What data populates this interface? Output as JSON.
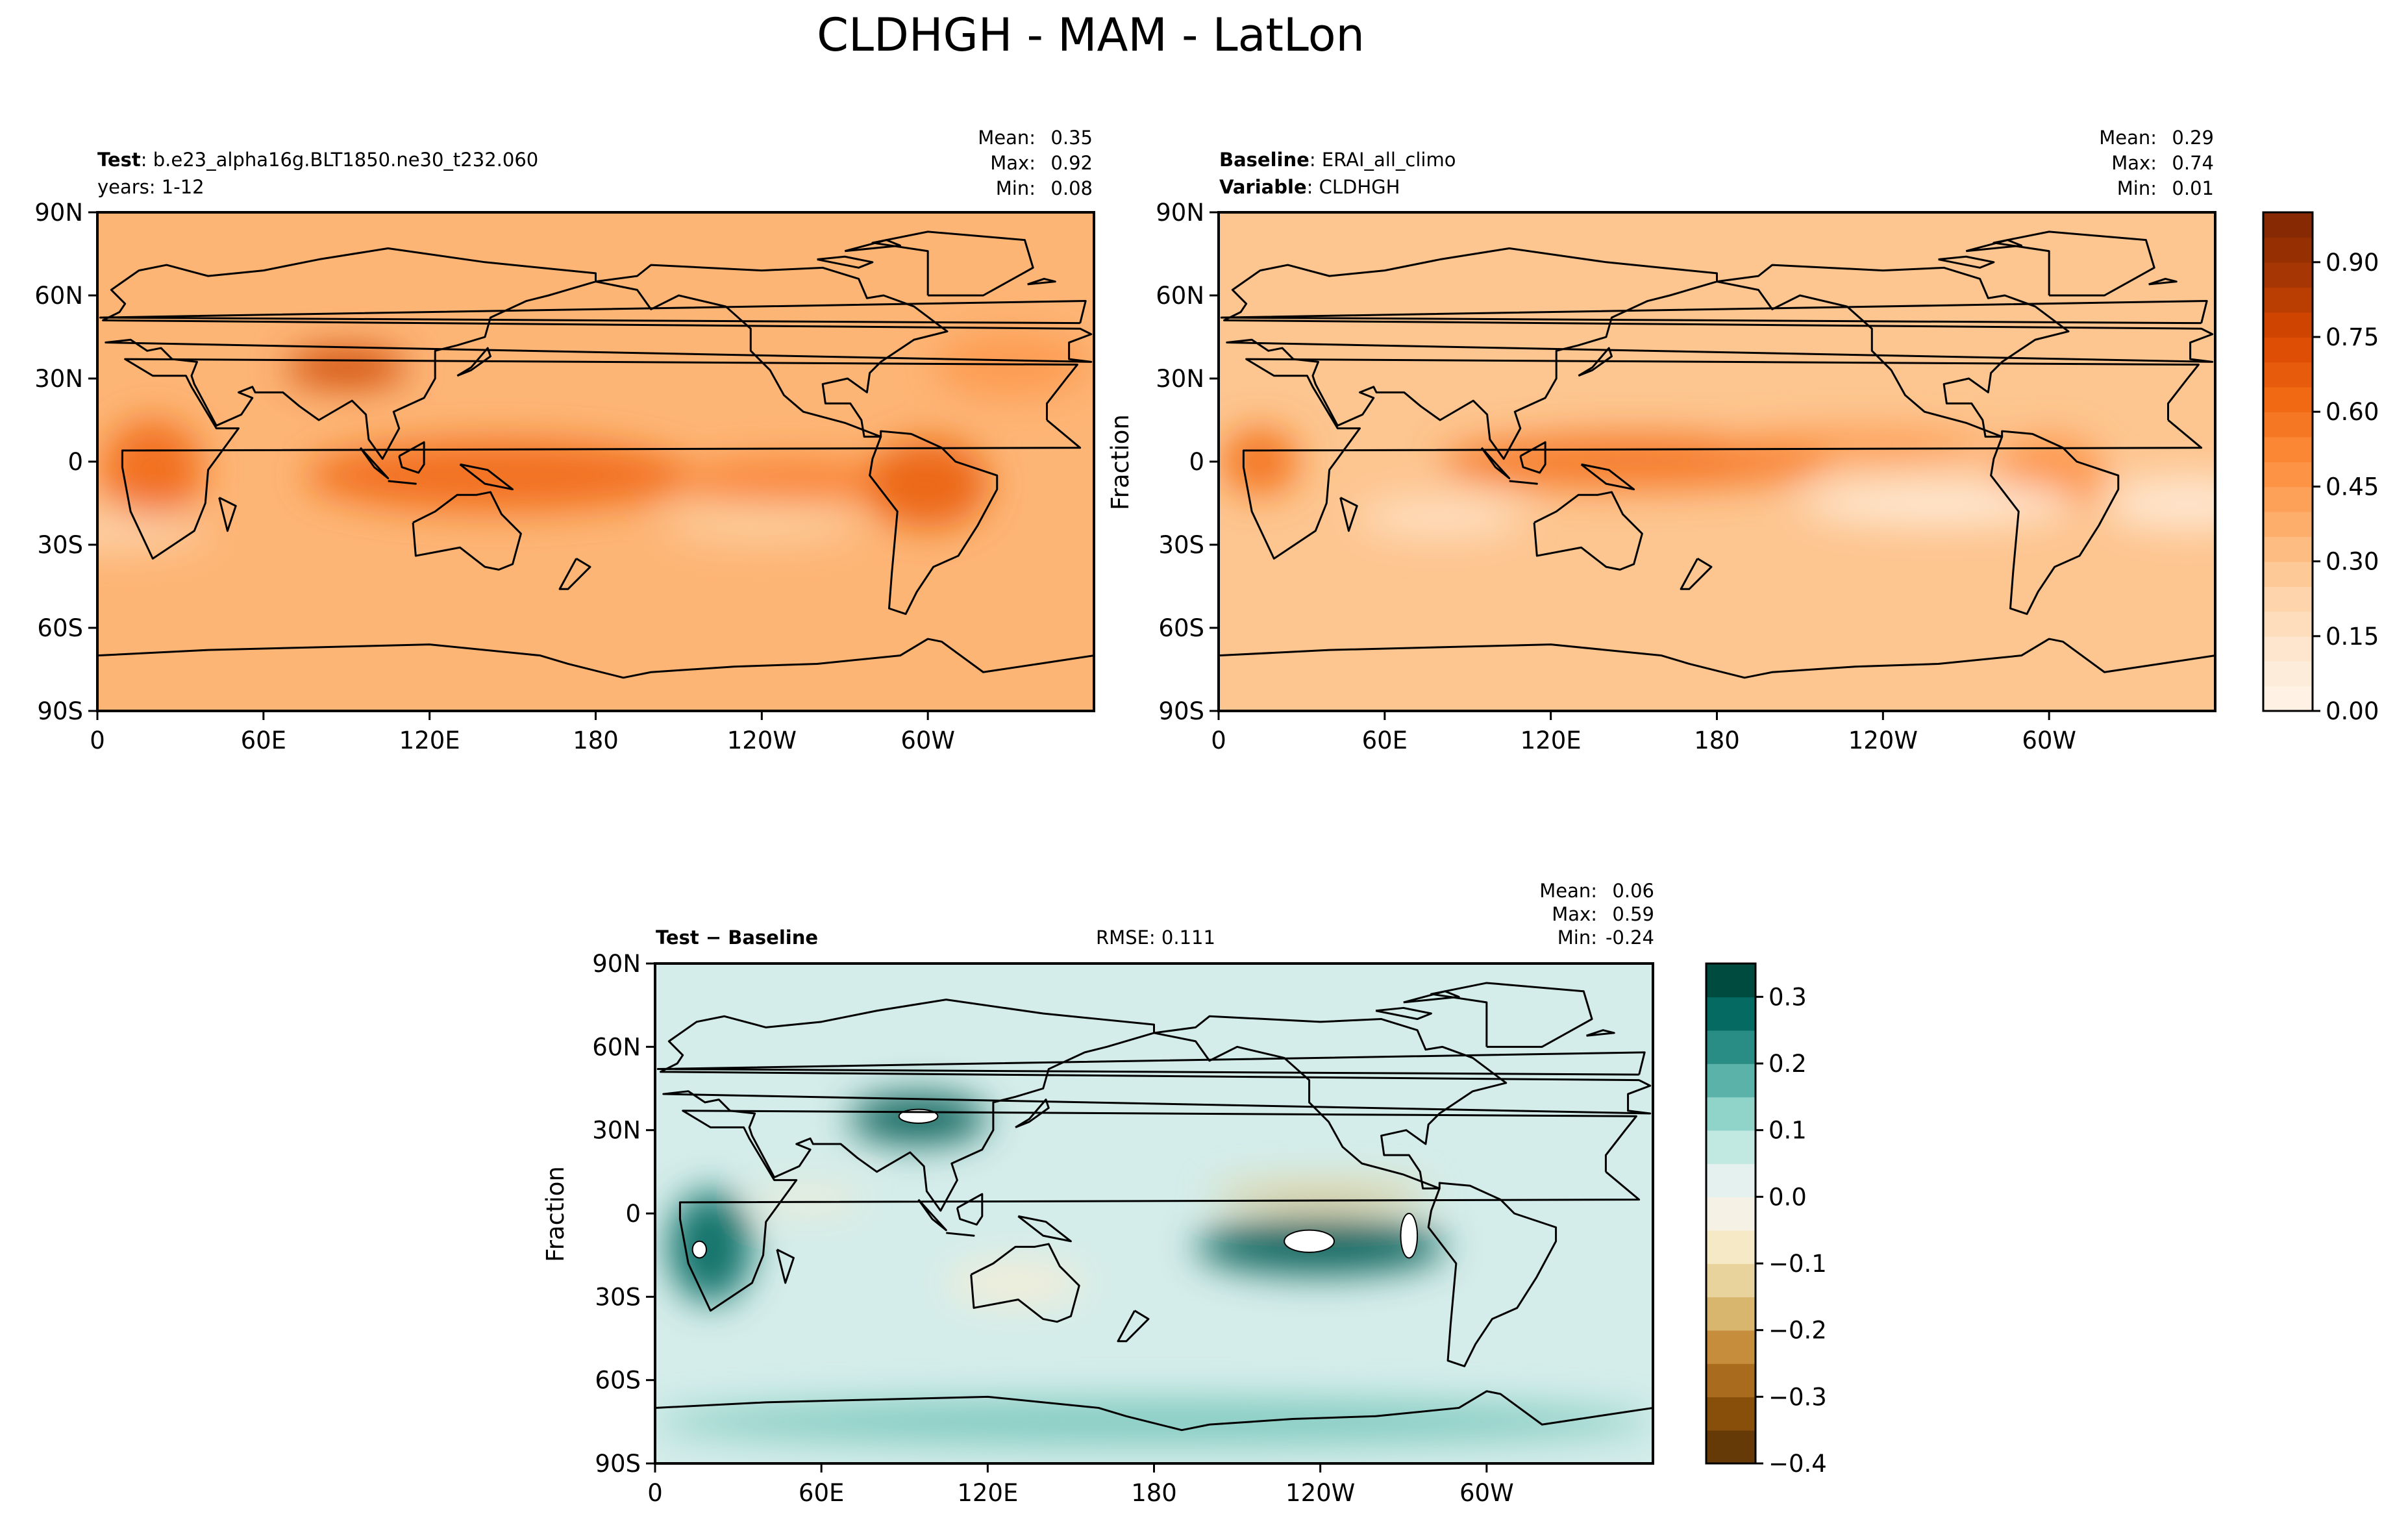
{
  "figure": {
    "title": "CLDHGH - MAM - LatLon"
  },
  "chart_data": [
    {
      "type": "heatmap",
      "panel": "test",
      "title_lines": [
        {
          "bold": "Test",
          "text": "b.e23_alpha16g.BLT1850.ne30_t232.060"
        },
        {
          "bold": "",
          "text": "years: 1-12"
        }
      ],
      "stats": {
        "mean": "0.35",
        "max": "0.92",
        "min": "0.08"
      },
      "stat_labels": {
        "mean": "Mean:",
        "max": "Max:",
        "min": "Min:"
      },
      "xticks": [
        "0",
        "60E",
        "120E",
        "180",
        "120W",
        "60W"
      ],
      "yticks": [
        "90N",
        "60N",
        "30N",
        "0",
        "30S",
        "60S",
        "90S"
      ],
      "xlim": [
        0,
        360
      ],
      "ylim": [
        -90,
        90
      ],
      "ylabel": "",
      "colormap": "Oranges",
      "zlim": [
        0.0,
        1.0
      ],
      "features": {
        "background": 0.35,
        "blobs": [
          {
            "lon": 145,
            "lat": -5,
            "rx": 70,
            "ry": 13,
            "value": 0.62
          },
          {
            "lon": 250,
            "lat": -7,
            "rx": 40,
            "ry": 8,
            "value": 0.55
          },
          {
            "lon": 300,
            "lat": -8,
            "rx": 22,
            "ry": 16,
            "value": 0.66
          },
          {
            "lon": 20,
            "lat": -3,
            "rx": 18,
            "ry": 18,
            "value": 0.62
          },
          {
            "lon": 90,
            "lat": 34,
            "rx": 22,
            "ry": 7,
            "value": 0.78
          },
          {
            "lon": 330,
            "lat": 35,
            "rx": 28,
            "ry": 12,
            "value": 0.45
          },
          {
            "lon": 0,
            "lat": -25,
            "rx": 40,
            "ry": 7,
            "value": 0.22
          },
          {
            "lon": 240,
            "lat": -22,
            "rx": 35,
            "ry": 7,
            "value": 0.25
          }
        ]
      }
    },
    {
      "type": "heatmap",
      "panel": "baseline",
      "title_lines": [
        {
          "bold": "Baseline",
          "text": "ERAI_all_climo"
        },
        {
          "bold": "Variable",
          "text": "CLDHGH"
        }
      ],
      "stats": {
        "mean": "0.29",
        "max": "0.74",
        "min": "0.01"
      },
      "stat_labels": {
        "mean": "Mean:",
        "max": "Max:",
        "min": "Min:"
      },
      "xticks": [
        "0",
        "60E",
        "120E",
        "180",
        "120W",
        "60W"
      ],
      "yticks": [
        "90N",
        "60N",
        "30N",
        "0",
        "30S",
        "60S",
        "90S"
      ],
      "xlim": [
        0,
        360
      ],
      "ylim": [
        -90,
        90
      ],
      "ylabel": "Fraction",
      "colormap": "Oranges",
      "zlim": [
        0.0,
        1.0
      ],
      "colorbar_ticks": [
        "0.00",
        "0.15",
        "0.30",
        "0.45",
        "0.60",
        "0.75",
        "0.90"
      ],
      "colorbar_values": [
        0.0,
        0.15,
        0.3,
        0.45,
        0.6,
        0.75,
        0.9
      ],
      "features": {
        "background": 0.29,
        "blobs": [
          {
            "lon": 150,
            "lat": 0,
            "rx": 70,
            "ry": 10,
            "value": 0.58
          },
          {
            "lon": 230,
            "lat": 6,
            "rx": 50,
            "ry": 5,
            "value": 0.48
          },
          {
            "lon": 15,
            "lat": 0,
            "rx": 14,
            "ry": 12,
            "value": 0.6
          },
          {
            "lon": 300,
            "lat": -5,
            "rx": 20,
            "ry": 14,
            "value": 0.48
          },
          {
            "lon": 260,
            "lat": -15,
            "rx": 50,
            "ry": 8,
            "value": 0.08
          },
          {
            "lon": 350,
            "lat": -15,
            "rx": 30,
            "ry": 10,
            "value": 0.1
          },
          {
            "lon": 80,
            "lat": -20,
            "rx": 30,
            "ry": 7,
            "value": 0.15
          }
        ]
      }
    },
    {
      "type": "heatmap",
      "panel": "difference",
      "title_lines": [
        {
          "bold": "Test − Baseline",
          "text": ""
        }
      ],
      "center_text": "RMSE: 0.111",
      "stats": {
        "mean": "0.06",
        "max": "0.59",
        "min": "-0.24"
      },
      "stat_labels": {
        "mean": "Mean:",
        "max": "Max:",
        "min": "Min:"
      },
      "xticks": [
        "0",
        "60E",
        "120E",
        "180",
        "120W",
        "60W"
      ],
      "yticks": [
        "90N",
        "60N",
        "30N",
        "0",
        "30S",
        "60S",
        "90S"
      ],
      "xlim": [
        0,
        360
      ],
      "ylim": [
        -90,
        90
      ],
      "ylabel": "Fraction",
      "colormap": "BrBG",
      "zlim": [
        -0.4,
        0.35
      ],
      "colorbar_ticks": [
        "−0.4",
        "−0.3",
        "−0.2",
        "−0.1",
        "0.0",
        "0.1",
        "0.2",
        "0.3"
      ],
      "colorbar_values": [
        -0.4,
        -0.3,
        -0.2,
        -0.1,
        0.0,
        0.1,
        0.2,
        0.3
      ],
      "features": {
        "background": 0.05,
        "blobs": [
          {
            "lon": 240,
            "lat": -12,
            "rx": 45,
            "ry": 10,
            "value": 0.3
          },
          {
            "lon": 20,
            "lat": -12,
            "rx": 15,
            "ry": 20,
            "value": 0.28
          },
          {
            "lon": 95,
            "lat": 34,
            "rx": 25,
            "ry": 9,
            "value": 0.3
          },
          {
            "lon": 240,
            "lat": 7,
            "rx": 40,
            "ry": 4,
            "value": -0.15
          },
          {
            "lon": 55,
            "lat": 5,
            "rx": 20,
            "ry": 4,
            "value": -0.06
          },
          {
            "lon": 130,
            "lat": -25,
            "rx": 25,
            "ry": 8,
            "value": -0.05
          },
          {
            "lon": 180,
            "lat": -75,
            "rx": 180,
            "ry": 8,
            "value": 0.15
          }
        ],
        "holes": [
          {
            "lon": 95,
            "lat": 35,
            "rx": 7,
            "ry": 2.5
          },
          {
            "lon": 236,
            "lat": -10,
            "rx": 9,
            "ry": 4
          },
          {
            "lon": 272,
            "lat": -8,
            "rx": 3,
            "ry": 8
          },
          {
            "lon": 16,
            "lat": -13,
            "rx": 2.5,
            "ry": 3
          }
        ]
      }
    }
  ],
  "coastlines": [
    [
      [
        -17,
        15
      ],
      [
        -17,
        21
      ],
      [
        -10,
        30
      ],
      [
        -6,
        35
      ],
      [
        10,
        37
      ],
      [
        20,
        31
      ],
      [
        32,
        31
      ],
      [
        34,
        27
      ],
      [
        43,
        12
      ],
      [
        51,
        12
      ],
      [
        40,
        -3
      ],
      [
        39,
        -15
      ],
      [
        35,
        -25
      ],
      [
        20,
        -35
      ],
      [
        12,
        -18
      ],
      [
        9,
        -2
      ],
      [
        9,
        4
      ],
      [
        -5,
        5
      ],
      [
        -17,
        15
      ]
    ],
    [
      [
        -9,
        39
      ],
      [
        -9,
        43
      ],
      [
        -1,
        46
      ],
      [
        -5,
        48
      ],
      [
        2,
        51
      ],
      [
        8,
        54
      ],
      [
        10,
        57
      ],
      [
        5,
        62
      ],
      [
        15,
        69
      ],
      [
        25,
        71
      ],
      [
        40,
        67
      ],
      [
        60,
        69
      ],
      [
        80,
        73
      ],
      [
        105,
        77
      ],
      [
        140,
        72
      ],
      [
        160,
        70
      ],
      [
        180,
        68
      ],
      [
        180,
        65
      ],
      [
        163,
        60
      ],
      [
        155,
        58
      ],
      [
        142,
        52
      ],
      [
        140,
        45
      ],
      [
        130,
        42
      ],
      [
        122,
        40
      ],
      [
        122,
        30
      ],
      [
        118,
        23
      ],
      [
        107,
        18
      ],
      [
        109,
        12
      ],
      [
        103,
        1
      ],
      [
        98,
        8
      ],
      [
        97,
        17
      ],
      [
        92,
        22
      ],
      [
        80,
        15
      ],
      [
        73,
        20
      ],
      [
        67,
        25
      ],
      [
        57,
        25
      ],
      [
        56,
        27
      ],
      [
        51,
        25
      ],
      [
        56,
        23
      ],
      [
        52,
        17
      ],
      [
        43,
        13
      ],
      [
        35,
        28
      ],
      [
        34,
        31
      ],
      [
        36,
        36
      ],
      [
        27,
        37
      ],
      [
        23,
        41
      ],
      [
        18,
        40
      ],
      [
        12,
        44
      ],
      [
        3,
        43
      ],
      [
        -1,
        36
      ],
      [
        -9,
        37
      ],
      [
        -9,
        39
      ]
    ],
    [
      [
        180,
        65
      ],
      [
        195,
        67
      ],
      [
        200,
        71
      ],
      [
        220,
        70
      ],
      [
        240,
        69
      ],
      [
        262,
        70
      ],
      [
        275,
        66
      ],
      [
        278,
        59
      ],
      [
        284,
        60
      ],
      [
        295,
        56
      ],
      [
        307,
        47
      ],
      [
        295,
        44
      ],
      [
        283,
        36
      ],
      [
        279,
        32
      ],
      [
        278,
        25
      ],
      [
        271,
        30
      ],
      [
        262,
        28
      ],
      [
        263,
        21
      ],
      [
        267,
        21
      ],
      [
        272,
        21
      ],
      [
        276,
        15
      ],
      [
        277,
        9
      ],
      [
        280,
        9
      ],
      [
        283,
        9
      ],
      [
        270,
        14
      ],
      [
        255,
        18
      ],
      [
        248,
        24
      ],
      [
        243,
        33
      ],
      [
        236,
        40
      ],
      [
        236,
        48
      ],
      [
        227,
        56
      ],
      [
        210,
        60
      ],
      [
        200,
        55
      ],
      [
        195,
        62
      ],
      [
        180,
        65
      ]
    ],
    [
      [
        283,
        9
      ],
      [
        283,
        11
      ],
      [
        294,
        10
      ],
      [
        305,
        5
      ],
      [
        310,
        0
      ],
      [
        325,
        -5
      ],
      [
        325,
        -10
      ],
      [
        318,
        -23
      ],
      [
        311,
        -34
      ],
      [
        302,
        -38
      ],
      [
        296,
        -47
      ],
      [
        292,
        -55
      ],
      [
        286,
        -53
      ],
      [
        287,
        -40
      ],
      [
        289,
        -18
      ],
      [
        279,
        -5
      ],
      [
        280,
        1
      ],
      [
        283,
        9
      ]
    ],
    [
      [
        114,
        -22
      ],
      [
        122,
        -18
      ],
      [
        130,
        -12
      ],
      [
        137,
        -12
      ],
      [
        142,
        -11
      ],
      [
        146,
        -19
      ],
      [
        153,
        -26
      ],
      [
        150,
        -37
      ],
      [
        145,
        -39
      ],
      [
        140,
        -38
      ],
      [
        131,
        -31
      ],
      [
        115,
        -34
      ],
      [
        114,
        -22
      ]
    ],
    [
      [
        0,
        -70
      ],
      [
        40,
        -68
      ],
      [
        80,
        -67
      ],
      [
        120,
        -66
      ],
      [
        160,
        -70
      ],
      [
        170,
        -73
      ],
      [
        190,
        -78
      ],
      [
        200,
        -76
      ],
      [
        230,
        -74
      ],
      [
        260,
        -73
      ],
      [
        290,
        -70
      ],
      [
        300,
        -64
      ],
      [
        305,
        -65
      ],
      [
        320,
        -76
      ],
      [
        340,
        -73
      ],
      [
        360,
        -70
      ]
    ],
    [
      [
        300,
        60
      ],
      [
        320,
        60
      ],
      [
        338,
        70
      ],
      [
        335,
        80
      ],
      [
        300,
        83
      ],
      [
        280,
        79
      ],
      [
        300,
        76
      ],
      [
        300,
        60
      ]
    ],
    [
      [
        95,
        5
      ],
      [
        105,
        -6
      ],
      [
        100,
        -2
      ],
      [
        95,
        5
      ]
    ],
    [
      [
        105,
        -7
      ],
      [
        115,
        -8
      ],
      [
        105,
        -7
      ]
    ],
    [
      [
        109,
        2
      ],
      [
        118,
        7
      ],
      [
        118,
        -1
      ],
      [
        116,
        -4
      ],
      [
        110,
        -2
      ],
      [
        109,
        2
      ]
    ],
    [
      [
        131,
        -1
      ],
      [
        141,
        -3
      ],
      [
        150,
        -10
      ],
      [
        140,
        -8
      ],
      [
        131,
        -1
      ]
    ],
    [
      [
        130,
        31
      ],
      [
        135,
        34
      ],
      [
        141,
        41
      ],
      [
        142,
        38
      ],
      [
        135,
        33
      ],
      [
        130,
        31
      ]
    ],
    [
      [
        -5,
        50
      ],
      [
        -3,
        58
      ],
      [
        1,
        52
      ],
      [
        -5,
        50
      ]
    ],
    [
      [
        173,
        -35
      ],
      [
        178,
        -38
      ],
      [
        170,
        -46
      ],
      [
        167,
        -46
      ],
      [
        173,
        -35
      ]
    ],
    [
      [
        44,
        -13
      ],
      [
        50,
        -16
      ],
      [
        47,
        -25
      ],
      [
        44,
        -13
      ]
    ],
    [
      [
        -24,
        64
      ],
      [
        -14,
        65
      ],
      [
        -18,
        66
      ],
      [
        -24,
        64
      ]
    ],
    [
      [
        260,
        73
      ],
      [
        270,
        74
      ],
      [
        280,
        72
      ],
      [
        275,
        70
      ],
      [
        260,
        73
      ]
    ],
    [
      [
        270,
        76
      ],
      [
        290,
        78
      ],
      [
        285,
        80
      ],
      [
        270,
        76
      ]
    ]
  ]
}
